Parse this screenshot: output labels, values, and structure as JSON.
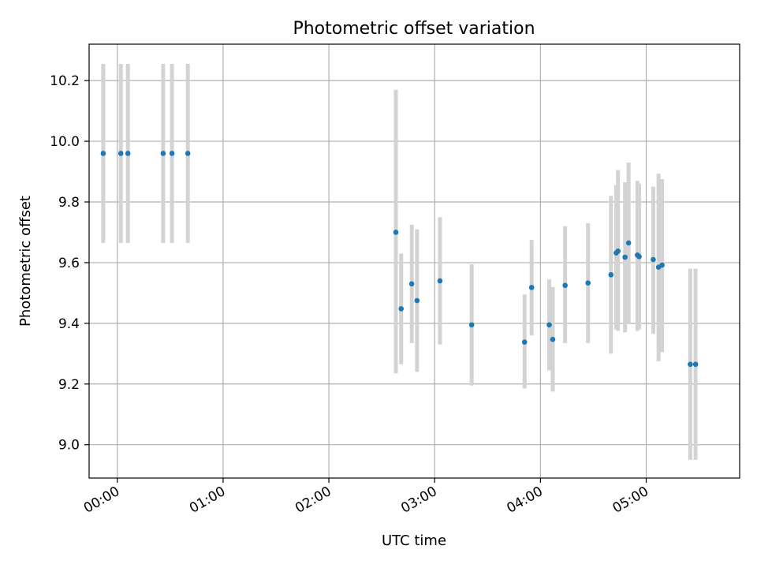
{
  "chart_data": {
    "type": "scatter",
    "title": "Photometric offset variation",
    "xlabel": "UTC time",
    "ylabel": "Photometric offset",
    "x_ticks": [
      "00:00",
      "01:00",
      "02:00",
      "03:00",
      "04:00",
      "05:00"
    ],
    "y_ticks": [
      "9.0",
      "9.2",
      "9.4",
      "9.6",
      "9.8",
      "10.0",
      "10.2"
    ],
    "xlim": [
      "23:44",
      "05:53"
    ],
    "ylim": [
      8.89,
      10.32
    ],
    "grid": true,
    "colors": {
      "points": "#1f77b4",
      "errorbars": "#d3d3d3",
      "grid": "#b0b0b0",
      "axes": "#000000"
    },
    "series": [
      {
        "points": [
          {
            "x": "23:52",
            "y": 9.96,
            "ylow": 9.665,
            "yhigh": 10.255
          },
          {
            "x": "00:02",
            "y": 9.96,
            "ylow": 9.665,
            "yhigh": 10.255
          },
          {
            "x": "00:06",
            "y": 9.96,
            "ylow": 9.665,
            "yhigh": 10.255
          },
          {
            "x": "00:26",
            "y": 9.96,
            "ylow": 9.665,
            "yhigh": 10.255
          },
          {
            "x": "00:31",
            "y": 9.96,
            "ylow": 9.665,
            "yhigh": 10.255
          },
          {
            "x": "00:40",
            "y": 9.96,
            "ylow": 9.665,
            "yhigh": 10.255
          },
          {
            "x": "02:38",
            "y": 9.7,
            "ylow": 9.235,
            "yhigh": 10.17
          },
          {
            "x": "02:41",
            "y": 9.448,
            "ylow": 9.265,
            "yhigh": 9.63
          },
          {
            "x": "02:47",
            "y": 9.53,
            "ylow": 9.335,
            "yhigh": 9.725
          },
          {
            "x": "02:50",
            "y": 9.475,
            "ylow": 9.24,
            "yhigh": 9.71
          },
          {
            "x": "03:03",
            "y": 9.54,
            "ylow": 9.33,
            "yhigh": 9.75
          },
          {
            "x": "03:21",
            "y": 9.395,
            "ylow": 9.195,
            "yhigh": 9.595
          },
          {
            "x": "03:51",
            "y": 9.338,
            "ylow": 9.185,
            "yhigh": 9.495
          },
          {
            "x": "03:55",
            "y": 9.518,
            "ylow": 9.36,
            "yhigh": 9.675
          },
          {
            "x": "04:05",
            "y": 9.395,
            "ylow": 9.245,
            "yhigh": 9.545
          },
          {
            "x": "04:07",
            "y": 9.347,
            "ylow": 9.175,
            "yhigh": 9.52
          },
          {
            "x": "04:14",
            "y": 9.525,
            "ylow": 9.335,
            "yhigh": 9.72
          },
          {
            "x": "04:27",
            "y": 9.533,
            "ylow": 9.335,
            "yhigh": 9.73
          },
          {
            "x": "04:40",
            "y": 9.56,
            "ylow": 9.3,
            "yhigh": 9.82
          },
          {
            "x": "04:43",
            "y": 9.632,
            "ylow": 9.38,
            "yhigh": 9.855
          },
          {
            "x": "04:44",
            "y": 9.638,
            "ylow": 9.375,
            "yhigh": 9.905
          },
          {
            "x": "04:48",
            "y": 9.618,
            "ylow": 9.37,
            "yhigh": 9.865
          },
          {
            "x": "04:50",
            "y": 9.665,
            "ylow": 9.4,
            "yhigh": 9.93
          },
          {
            "x": "04:55",
            "y": 9.625,
            "ylow": 9.375,
            "yhigh": 9.87
          },
          {
            "x": "04:56",
            "y": 9.62,
            "ylow": 9.38,
            "yhigh": 9.86
          },
          {
            "x": "05:04",
            "y": 9.61,
            "ylow": 9.365,
            "yhigh": 9.85
          },
          {
            "x": "05:07",
            "y": 9.585,
            "ylow": 9.275,
            "yhigh": 9.893
          },
          {
            "x": "05:09",
            "y": 9.592,
            "ylow": 9.305,
            "yhigh": 9.875
          },
          {
            "x": "05:25",
            "y": 9.265,
            "ylow": 8.95,
            "yhigh": 9.58
          },
          {
            "x": "05:28",
            "y": 9.265,
            "ylow": 8.95,
            "yhigh": 9.58
          }
        ]
      }
    ]
  }
}
